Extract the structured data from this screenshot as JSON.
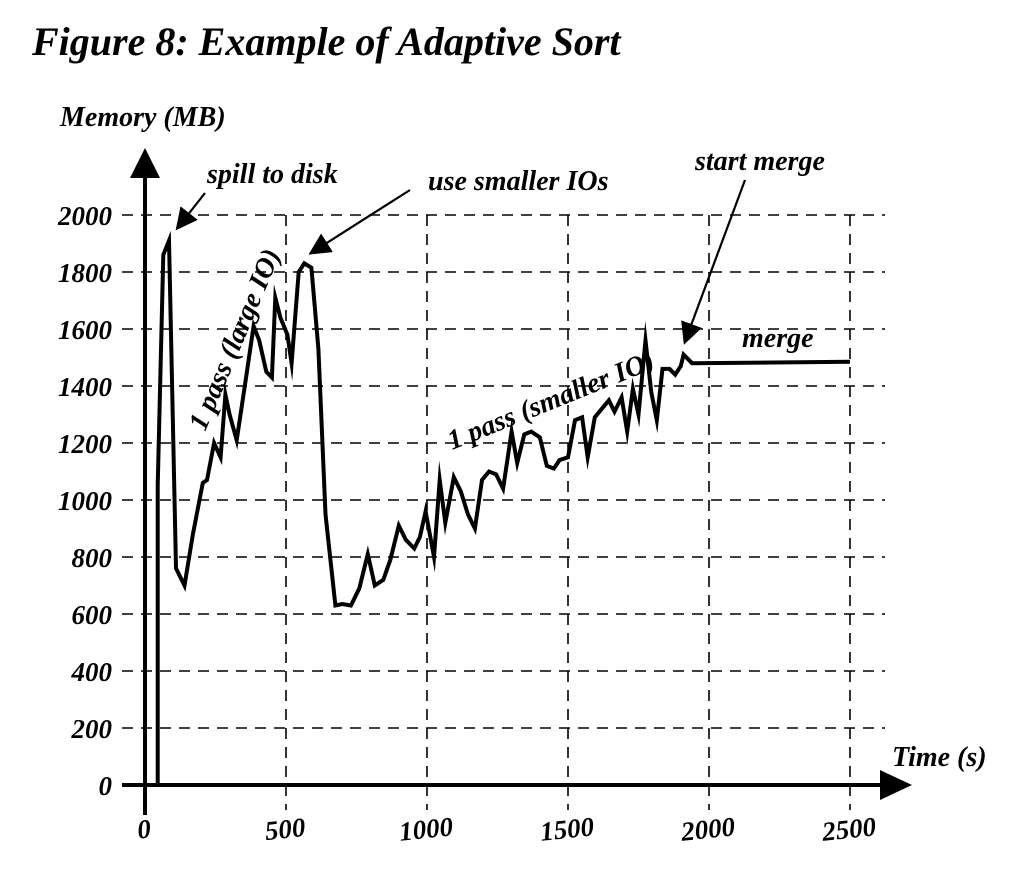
{
  "title": "Figure 8: Example of Adaptive Sort",
  "chart_data": {
    "type": "line",
    "ylabel": "Memory (MB)",
    "xlabel": "Time (s)",
    "xlim": [
      0,
      2500
    ],
    "ylim": [
      0,
      2000
    ],
    "x_ticks": [
      "0",
      "500",
      "1000",
      "1500",
      "2000",
      "2500"
    ],
    "y_ticks": [
      "0",
      "200",
      "400",
      "600",
      "800",
      "1000",
      "1200",
      "1400",
      "1600",
      "1800",
      "2000"
    ],
    "grid": true,
    "grid_style": "dashed",
    "series": [
      {
        "points": [
          [
            45,
            0
          ],
          [
            45,
            1050
          ],
          [
            65,
            1860
          ],
          [
            85,
            1910
          ],
          [
            110,
            760
          ],
          [
            140,
            700
          ],
          [
            170,
            880
          ],
          [
            205,
            1060
          ],
          [
            220,
            1070
          ],
          [
            245,
            1200
          ],
          [
            268,
            1150
          ],
          [
            285,
            1370
          ],
          [
            300,
            1300
          ],
          [
            325,
            1210
          ],
          [
            360,
            1440
          ],
          [
            385,
            1610
          ],
          [
            405,
            1560
          ],
          [
            430,
            1450
          ],
          [
            450,
            1430
          ],
          [
            462,
            1710
          ],
          [
            480,
            1640
          ],
          [
            505,
            1580
          ],
          [
            520,
            1480
          ],
          [
            545,
            1800
          ],
          [
            565,
            1830
          ],
          [
            590,
            1815
          ],
          [
            615,
            1530
          ],
          [
            640,
            950
          ],
          [
            675,
            630
          ],
          [
            700,
            635
          ],
          [
            730,
            630
          ],
          [
            760,
            690
          ],
          [
            790,
            810
          ],
          [
            815,
            700
          ],
          [
            845,
            720
          ],
          [
            870,
            790
          ],
          [
            900,
            910
          ],
          [
            925,
            860
          ],
          [
            955,
            830
          ],
          [
            975,
            870
          ],
          [
            995,
            960
          ],
          [
            1025,
            800
          ],
          [
            1045,
            1070
          ],
          [
            1065,
            920
          ],
          [
            1080,
            1000
          ],
          [
            1095,
            1080
          ],
          [
            1120,
            1030
          ],
          [
            1145,
            950
          ],
          [
            1170,
            900
          ],
          [
            1195,
            1070
          ],
          [
            1220,
            1100
          ],
          [
            1245,
            1090
          ],
          [
            1270,
            1040
          ],
          [
            1300,
            1240
          ],
          [
            1320,
            1130
          ],
          [
            1345,
            1230
          ],
          [
            1370,
            1240
          ],
          [
            1400,
            1220
          ],
          [
            1425,
            1120
          ],
          [
            1450,
            1110
          ],
          [
            1470,
            1140
          ],
          [
            1500,
            1150
          ],
          [
            1525,
            1280
          ],
          [
            1550,
            1290
          ],
          [
            1570,
            1150
          ],
          [
            1595,
            1290
          ],
          [
            1620,
            1320
          ],
          [
            1645,
            1350
          ],
          [
            1665,
            1310
          ],
          [
            1690,
            1360
          ],
          [
            1710,
            1240
          ],
          [
            1730,
            1390
          ],
          [
            1750,
            1300
          ],
          [
            1775,
            1560
          ],
          [
            1795,
            1380
          ],
          [
            1815,
            1280
          ],
          [
            1835,
            1460
          ],
          [
            1860,
            1460
          ],
          [
            1880,
            1440
          ],
          [
            1900,
            1470
          ],
          [
            1910,
            1510
          ],
          [
            1940,
            1480
          ],
          [
            2500,
            1485
          ]
        ]
      }
    ],
    "annotations": [
      {
        "text": "spill to disk",
        "target": [
          85,
          1910
        ]
      },
      {
        "text": "use smaller IOs",
        "target": [
          565,
          1830
        ]
      },
      {
        "text": "start merge",
        "target": [
          1910,
          1510
        ]
      },
      {
        "text": "merge"
      },
      {
        "text": "1 pass (large IO)"
      },
      {
        "text": "1 pass (smaller IO)"
      }
    ]
  }
}
